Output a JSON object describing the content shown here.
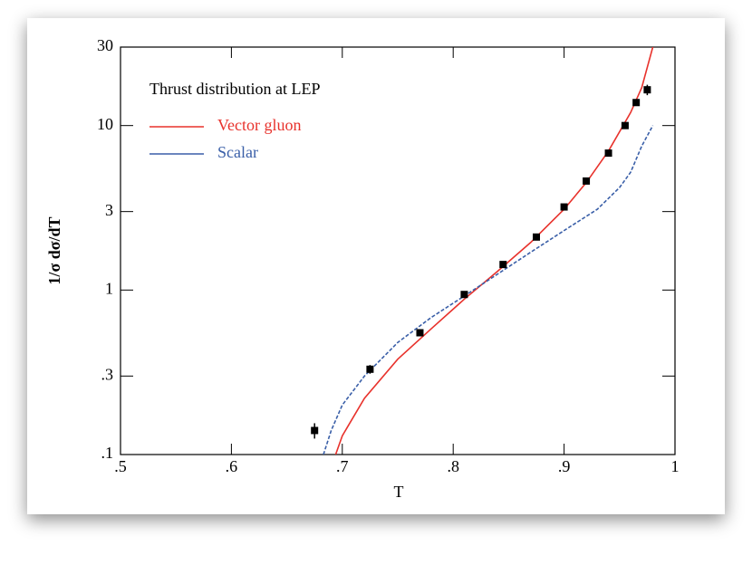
{
  "chart_data": {
    "type": "line",
    "title": "Thrust distribution at LEP",
    "xlabel": "T",
    "ylabel": "1/σ dσ/dT",
    "xlim": [
      0.5,
      1
    ],
    "ylim": [
      0.1,
      30
    ],
    "log_y": true,
    "xticks": [
      {
        "value": 0.5,
        "label": ".5"
      },
      {
        "value": 0.6,
        "label": ".6"
      },
      {
        "value": 0.7,
        "label": ".7"
      },
      {
        "value": 0.8,
        "label": ".8"
      },
      {
        "value": 0.9,
        "label": ".9"
      },
      1
    ],
    "yticks": [
      {
        "value": 0.1,
        "label": ".1"
      },
      {
        "value": 0.3,
        "label": ".3"
      },
      1,
      3,
      10,
      30
    ],
    "series": [
      {
        "name": "Vector gluon",
        "color": "#e8322c",
        "x": [
          0.694,
          0.7,
          0.72,
          0.75,
          0.78,
          0.81,
          0.84,
          0.87,
          0.9,
          0.92,
          0.94,
          0.96,
          0.97,
          0.98
        ],
        "values": [
          0.1,
          0.13,
          0.22,
          0.38,
          0.58,
          0.88,
          1.3,
          1.95,
          3.1,
          4.5,
          7,
          12,
          17,
          30
        ]
      },
      {
        "name": "Scalar",
        "color": "#3a5fa8",
        "dash": true,
        "x": [
          0.683,
          0.69,
          0.7,
          0.72,
          0.75,
          0.78,
          0.81,
          0.84,
          0.87,
          0.9,
          0.93,
          0.95,
          0.96,
          0.97,
          0.98
        ],
        "values": [
          0.1,
          0.14,
          0.2,
          0.3,
          0.48,
          0.68,
          0.92,
          1.25,
          1.7,
          2.3,
          3.1,
          4.2,
          5.2,
          7.5,
          10
        ]
      }
    ],
    "points": {
      "color": "#000000",
      "x": [
        0.675,
        0.725,
        0.77,
        0.81,
        0.845,
        0.875,
        0.9,
        0.92,
        0.94,
        0.955,
        0.965,
        0.975
      ],
      "values": [
        0.14,
        0.33,
        0.55,
        0.94,
        1.43,
        2.1,
        3.2,
        4.6,
        6.8,
        10,
        13.8,
        16.5
      ],
      "errors": [
        0.015,
        0.02,
        0.02,
        0.03,
        0.05,
        0.08,
        0.12,
        0.15,
        0.25,
        0.4,
        0.6,
        1.2
      ]
    }
  }
}
